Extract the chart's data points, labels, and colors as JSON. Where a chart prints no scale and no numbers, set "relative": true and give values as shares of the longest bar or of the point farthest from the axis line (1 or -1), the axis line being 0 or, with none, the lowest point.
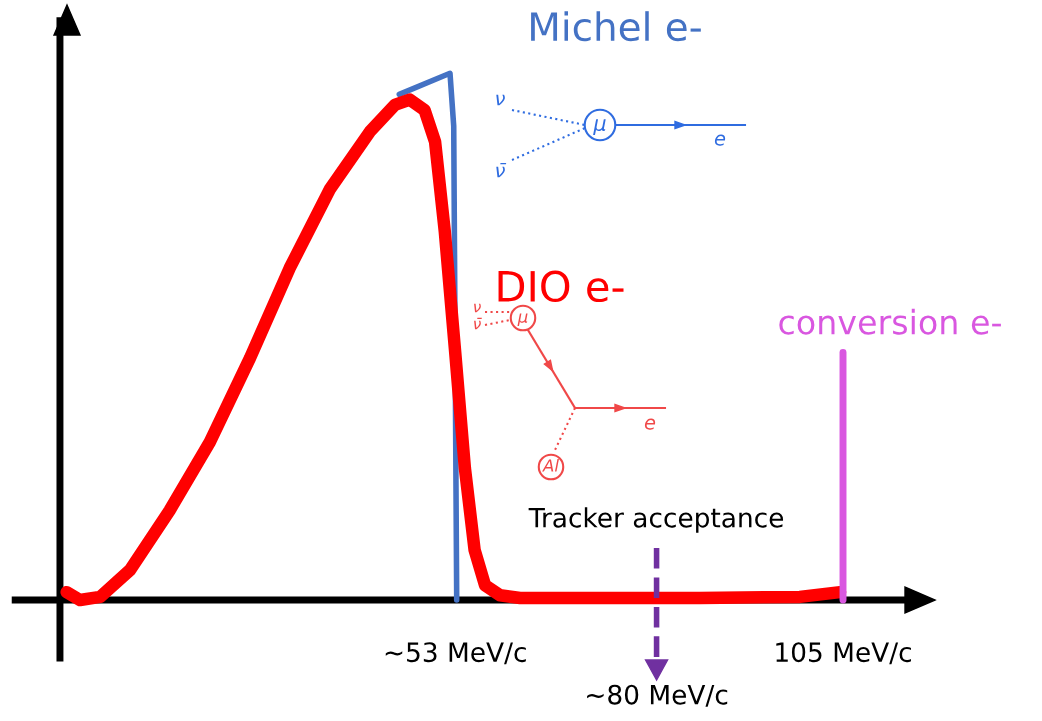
{
  "chart_data": {
    "type": "line",
    "relative": true,
    "xlim": [
      -6,
      115
    ],
    "xticks": [
      {
        "value": 53,
        "label": "~53 MeV/c"
      },
      {
        "value": 105,
        "label": "105 MeV/c"
      }
    ],
    "series": [
      {
        "name": "Michel e-",
        "color": "#4472c4",
        "x": [
          45.5,
          52.3,
          52.8,
          53.2
        ],
        "values": [
          0.96,
          1.0,
          0.9,
          0.0
        ]
      },
      {
        "name": "DIO e-",
        "color": "#ff0000",
        "x": [
          0.9,
          2.7,
          5.4,
          9.4,
          14.7,
          20.1,
          25.5,
          30.8,
          36.2,
          41.6,
          44.9,
          46.9,
          48.9,
          50.3,
          51.6,
          53.0,
          54.3,
          55.6,
          57.0,
          59.0,
          61.7,
          72.4,
          85.8,
          99.2,
          104.6
        ],
        "values": [
          0.015,
          0,
          0.006,
          0.057,
          0.17,
          0.3,
          0.46,
          0.63,
          0.78,
          0.89,
          0.94,
          0.95,
          0.93,
          0.87,
          0.7,
          0.47,
          0.25,
          0.095,
          0.028,
          0.009,
          0.004,
          0.004,
          0.004,
          0.006,
          0.015
        ]
      },
      {
        "name": "conversion e-",
        "color": "#d957e0",
        "x": [
          105,
          105
        ],
        "values": [
          0,
          0.47
        ]
      }
    ],
    "ref_lines": [
      {
        "axis": "x",
        "value": 80,
        "label": "~80 MeV/c",
        "color": "#7030a0",
        "line_style": "dashed"
      }
    ],
    "annotations": [
      "Tracker acceptance",
      "ν",
      "ν̄",
      "μ",
      "e",
      "ν",
      "ν̄",
      "μ",
      "e",
      "Al"
    ]
  }
}
